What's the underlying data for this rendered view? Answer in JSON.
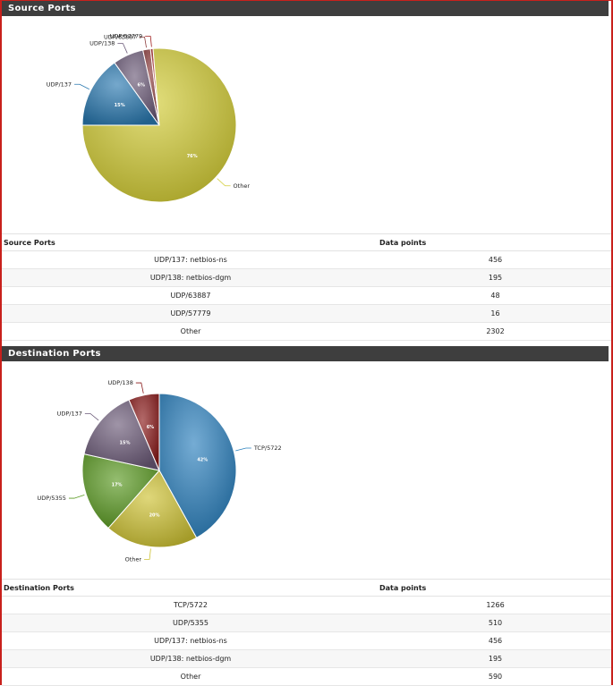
{
  "source": {
    "title": "Source Ports",
    "table_headers": [
      "Source Ports",
      "Data points"
    ],
    "rows": [
      {
        "label": "UDP/137: netbios-ns",
        "value": "456"
      },
      {
        "label": "UDP/138: netbios-dgm",
        "value": "195"
      },
      {
        "label": "UDP/63887",
        "value": "48"
      },
      {
        "label": "UDP/57779",
        "value": "16"
      },
      {
        "label": "Other",
        "value": "2302"
      }
    ]
  },
  "destination": {
    "title": "Destination Ports",
    "table_headers": [
      "Destination Ports",
      "Data points"
    ],
    "rows": [
      {
        "label": "TCP/5722",
        "value": "1266"
      },
      {
        "label": "UDP/5355",
        "value": "510"
      },
      {
        "label": "UDP/137: netbios-ns",
        "value": "456"
      },
      {
        "label": "UDP/138: netbios-dgm",
        "value": "195"
      },
      {
        "label": "Other",
        "value": "590"
      }
    ]
  },
  "colors": {
    "header_bg": "#3e3e3e",
    "frame_border": "#c8201c"
  },
  "chart_data": [
    {
      "type": "pie",
      "title": "",
      "slices": [
        {
          "label": "UDP/137",
          "value": 456,
          "pct_label": "15%",
          "color": "#2a79b0"
        },
        {
          "label": "UDP/138",
          "value": 195,
          "pct_label": "6%",
          "color": "#6b5a78"
        },
        {
          "label": "UDP/63887",
          "value": 48,
          "pct_label": "",
          "color": "#8c3b3b"
        },
        {
          "label": "UDP/57779",
          "value": 16,
          "pct_label": "",
          "color": "#a01e1e"
        },
        {
          "label": "Other",
          "value": 2302,
          "pct_label": "76%",
          "color": "#d2cc35"
        }
      ]
    },
    {
      "type": "pie",
      "title": "",
      "slices": [
        {
          "label": "TCP/5722",
          "value": 1266,
          "pct_label": "42%",
          "color": "#2a80bd"
        },
        {
          "label": "Other",
          "value": 590,
          "pct_label": "20%",
          "color": "#cdc233"
        },
        {
          "label": "UDP/5355",
          "value": 510,
          "pct_label": "17%",
          "color": "#5a9a22"
        },
        {
          "label": "UDP/137",
          "value": 456,
          "pct_label": "15%",
          "color": "#6b5a78"
        },
        {
          "label": "UDP/138",
          "value": 195,
          "pct_label": "6%",
          "color": "#8a1a1a"
        }
      ]
    }
  ]
}
